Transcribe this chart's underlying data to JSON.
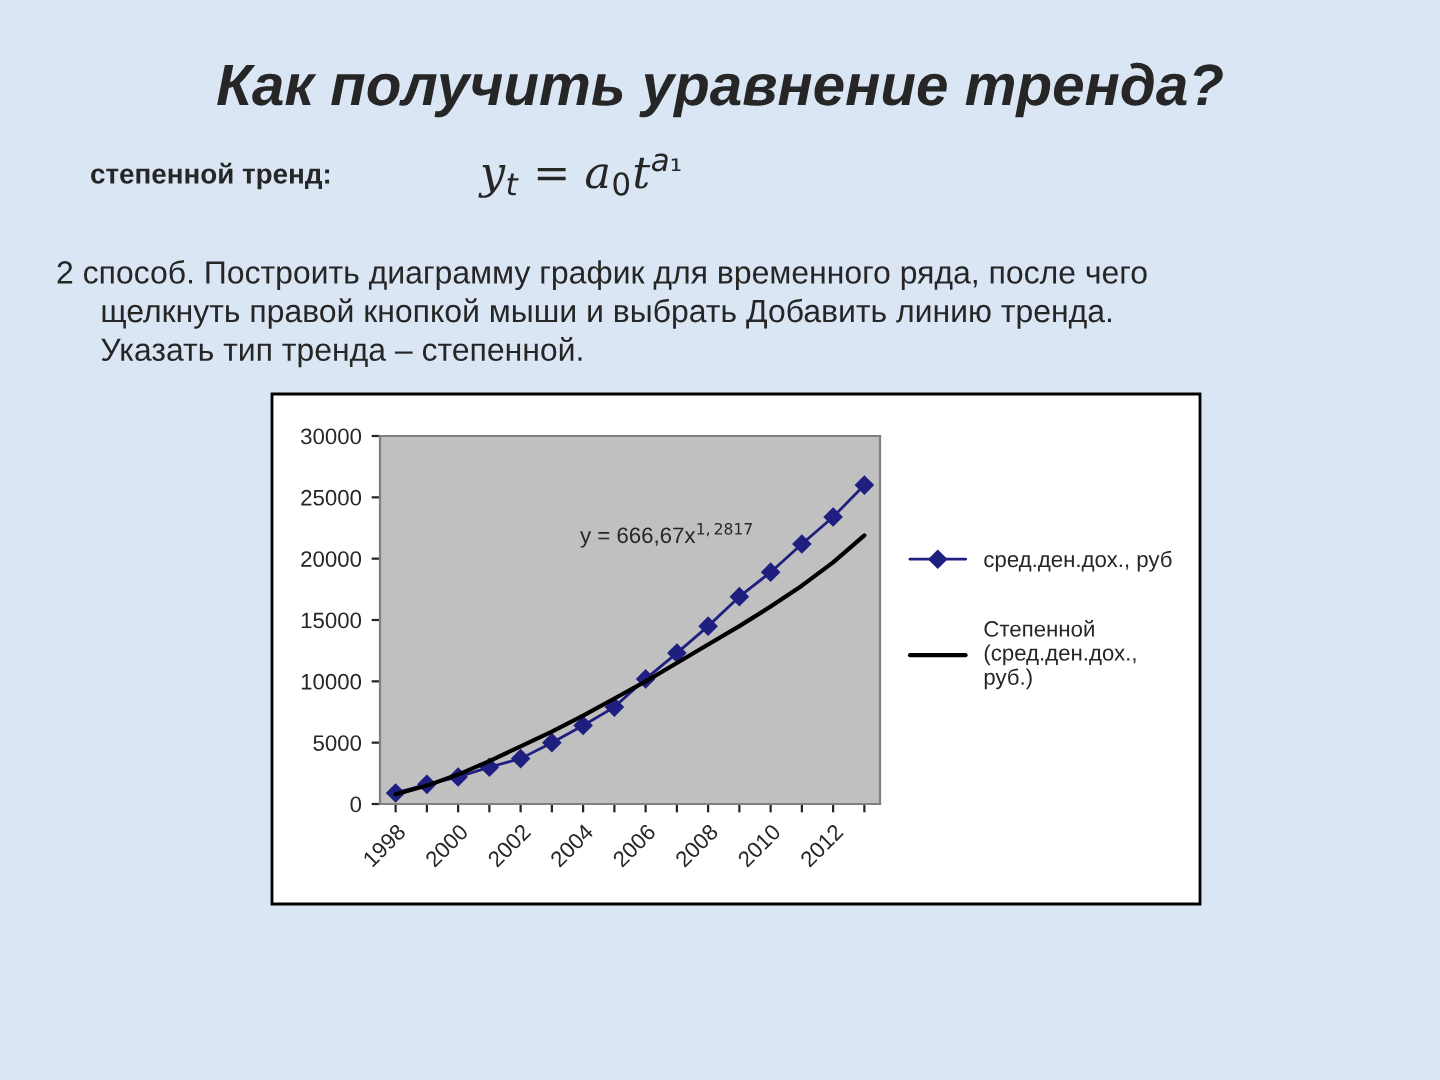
{
  "chart_data": {
    "type": "line",
    "title": "Как получить уравнение тренда?",
    "annotations": [
      "степенной тренд:",
      "y$_{t}$ = a$_{0}$t$^{a₁}$",
      "2 способ. Построить диаграмму график для временного ряда, после чего\n     щелкнуть правой кнопкой мыши и выбрать Добавить линию тренда.\n     Указать тип тренда – степенной.",
      "y = 666,67x$^{1,2817}$"
    ],
    "categories": [
      "1998",
      null,
      "2000",
      null,
      "2002",
      null,
      "2004",
      null,
      "2006",
      null,
      "2008",
      null,
      "2010",
      null,
      "2012",
      null
    ],
    "series": [
      {
        "name": "сред.ден.дох., руб",
        "color": "#1f1f80",
        "marker": "diamond",
        "line_style": "solid",
        "values": [
          900,
          1600,
          2200,
          3000,
          3700,
          5000,
          6400,
          7900,
          10200,
          12300,
          14500,
          16900,
          18900,
          21200,
          23400,
          26000
        ]
      },
      {
        "name": "Степенной\n(сред.ден.дох.,\nруб.)",
        "color": "#000000",
        "marker": "none",
        "line_style": "solid",
        "values": [
          800,
          1500,
          2400,
          3500,
          4700,
          5900,
          7200,
          8600,
          10000,
          11500,
          13000,
          14500,
          16100,
          17800,
          19700,
          21900
        ]
      }
    ],
    "ylim": [
      0,
      30000
    ],
    "yticks": [
      0,
      5000,
      10000,
      15000,
      20000,
      25000,
      30000
    ],
    "grid": false,
    "legend": "right"
  }
}
